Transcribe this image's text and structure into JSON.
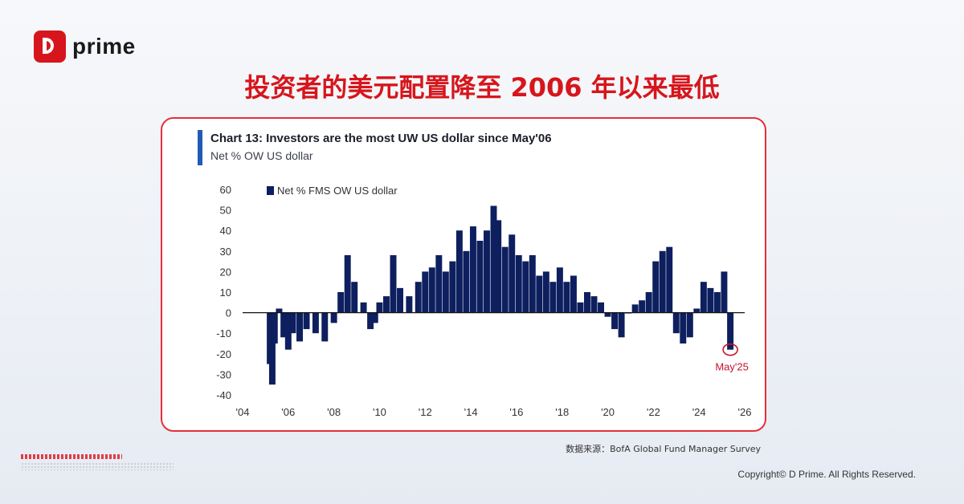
{
  "brand": {
    "logo_text": "prime"
  },
  "headline": "投资者的美元配置降至 2006 年以来最低",
  "chart_card": {
    "title": "Chart 13: Investors are the most UW US dollar since May'06",
    "subtitle": "Net % OW US dollar"
  },
  "chart_data": {
    "type": "bar",
    "title": "Chart 13: Investors are the most UW US dollar since May'06",
    "subtitle": "Net % OW US dollar",
    "legend": "Net % FMS OW US dollar",
    "legend_position": "top-left",
    "annotation": "May'25",
    "ylim": [
      -40,
      60
    ],
    "yticks": [
      60,
      50,
      40,
      30,
      20,
      10,
      0,
      -10,
      -20,
      -30,
      -40
    ],
    "xlim": [
      2004,
      2026
    ],
    "xticks": [
      "'04",
      "'06",
      "'08",
      "'10",
      "'12",
      "'14",
      "'16",
      "'18",
      "'20",
      "'22",
      "'24",
      "'26"
    ],
    "grid": false,
    "color": "#0d1f5e",
    "series": [
      {
        "x": [
          2005.2,
          2005.3,
          2005.4,
          2005.6,
          2005.8,
          2006.0,
          2006.2,
          2006.5,
          2006.8,
          2007.2,
          2007.6,
          2008.0,
          2008.3,
          2008.6,
          2008.9,
          2009.3,
          2009.6,
          2009.8,
          2010.0,
          2010.3,
          2010.6,
          2010.9,
          2011.3,
          2011.7,
          2012.0,
          2012.3,
          2012.6,
          2012.9,
          2013.2,
          2013.5,
          2013.8,
          2014.1,
          2014.4,
          2014.7,
          2015.0,
          2015.2,
          2015.5,
          2015.8,
          2016.1,
          2016.4,
          2016.7,
          2017.0,
          2017.3,
          2017.6,
          2017.9,
          2018.2,
          2018.5,
          2018.8,
          2019.1,
          2019.4,
          2019.7,
          2020.0,
          2020.3,
          2020.6,
          2020.9,
          2021.2,
          2021.5,
          2021.8,
          2022.1,
          2022.4,
          2022.7,
          2023.0,
          2023.3,
          2023.6,
          2023.9,
          2024.2,
          2024.5,
          2024.8,
          2025.1,
          2025.37
        ],
        "values": [
          -25,
          -35,
          -15,
          2,
          -12,
          -18,
          -10,
          -14,
          -8,
          -10,
          -14,
          -5,
          10,
          28,
          15,
          5,
          -8,
          -5,
          5,
          8,
          28,
          12,
          8,
          15,
          20,
          22,
          28,
          20,
          25,
          40,
          30,
          42,
          35,
          40,
          52,
          45,
          32,
          38,
          28,
          25,
          28,
          18,
          20,
          15,
          22,
          15,
          18,
          5,
          10,
          8,
          5,
          -2,
          -8,
          -12,
          0,
          4,
          6,
          10,
          25,
          30,
          32,
          -10,
          -15,
          -12,
          2,
          15,
          12,
          10,
          20,
          -18
        ]
      }
    ]
  },
  "source_text": "数据来源：BofA Global Fund Manager Survey",
  "copyright": "Copyright© D Prime. All Rights Reserved."
}
